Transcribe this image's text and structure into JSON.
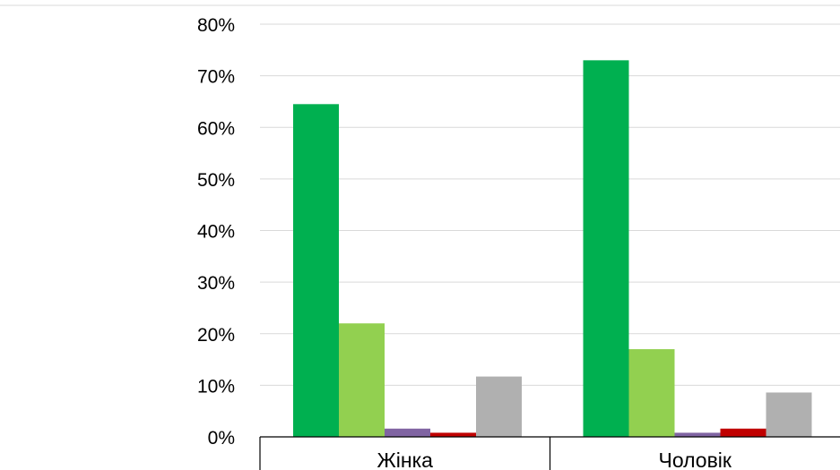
{
  "chart_data": {
    "type": "bar",
    "title": "",
    "xlabel": "",
    "ylabel": "",
    "categories": [
      "Жінка",
      "Чоловік"
    ],
    "ylim": [
      0,
      80
    ],
    "yticks": [
      0,
      10,
      20,
      30,
      40,
      50,
      60,
      70,
      80
    ],
    "ytick_labels": [
      "0%",
      "10%",
      "20%",
      "30%",
      "40%",
      "50%",
      "60%",
      "70%",
      "80%"
    ],
    "grid": true,
    "legend": "none",
    "series": [
      {
        "color": "#00b050",
        "values": [
          64.5,
          73.0
        ]
      },
      {
        "color": "#92d050",
        "values": [
          22.0,
          17.0
        ]
      },
      {
        "color": "#8064a2",
        "values": [
          1.6,
          0.8
        ]
      },
      {
        "color": "#c00000",
        "values": [
          0.8,
          1.6
        ]
      },
      {
        "color": "#b0b0b0",
        "values": [
          11.7,
          8.6
        ]
      }
    ]
  }
}
